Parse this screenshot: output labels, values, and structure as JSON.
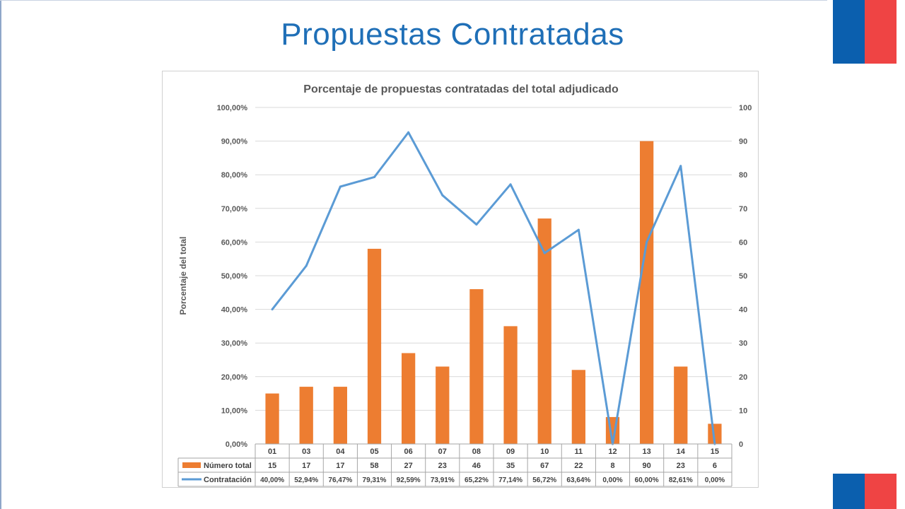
{
  "slide": {
    "title": "Propuestas Contratadas",
    "colors": {
      "title": "#1f6fb7",
      "flag_blue": "#0b5fae",
      "flag_red": "#ef4444"
    }
  },
  "chart_data": {
    "type": "bar",
    "title": "Porcentaje de propuestas contratadas del total adjudicado",
    "ylabel": "Porcentaje del total",
    "xlabel": "",
    "categories": [
      "01",
      "03",
      "04",
      "05",
      "06",
      "07",
      "08",
      "09",
      "10",
      "11",
      "12",
      "13",
      "14",
      "15"
    ],
    "y_left": {
      "ticks": [
        "0,00%",
        "10,00%",
        "20,00%",
        "30,00%",
        "40,00%",
        "50,00%",
        "60,00%",
        "70,00%",
        "80,00%",
        "90,00%",
        "100,00%"
      ],
      "ylim": [
        0,
        100
      ]
    },
    "y_right": {
      "ticks": [
        "0",
        "10",
        "20",
        "30",
        "40",
        "50",
        "60",
        "70",
        "80",
        "90",
        "100"
      ],
      "ylim": [
        0,
        100
      ]
    },
    "grid": true,
    "legend": "data-table",
    "series": [
      {
        "name": "Número total",
        "type": "bar",
        "axis": "right",
        "color": "#ed7d31",
        "values": [
          15,
          17,
          17,
          58,
          27,
          23,
          46,
          35,
          67,
          22,
          8,
          90,
          23,
          6
        ],
        "labels": [
          "15",
          "17",
          "17",
          "58",
          "27",
          "23",
          "46",
          "35",
          "67",
          "22",
          "8",
          "90",
          "23",
          "6"
        ]
      },
      {
        "name": "Contratación",
        "type": "line",
        "axis": "left",
        "color": "#5b9bd5",
        "values": [
          40.0,
          52.94,
          76.47,
          79.31,
          92.59,
          73.91,
          65.22,
          77.14,
          56.72,
          63.64,
          0.0,
          60.0,
          82.61,
          0.0
        ],
        "labels": [
          "40,00%",
          "52,94%",
          "76,47%",
          "79,31%",
          "92,59%",
          "73,91%",
          "65,22%",
          "77,14%",
          "56,72%",
          "63,64%",
          "0,00%",
          "60,00%",
          "82,61%",
          "0,00%"
        ]
      }
    ]
  }
}
